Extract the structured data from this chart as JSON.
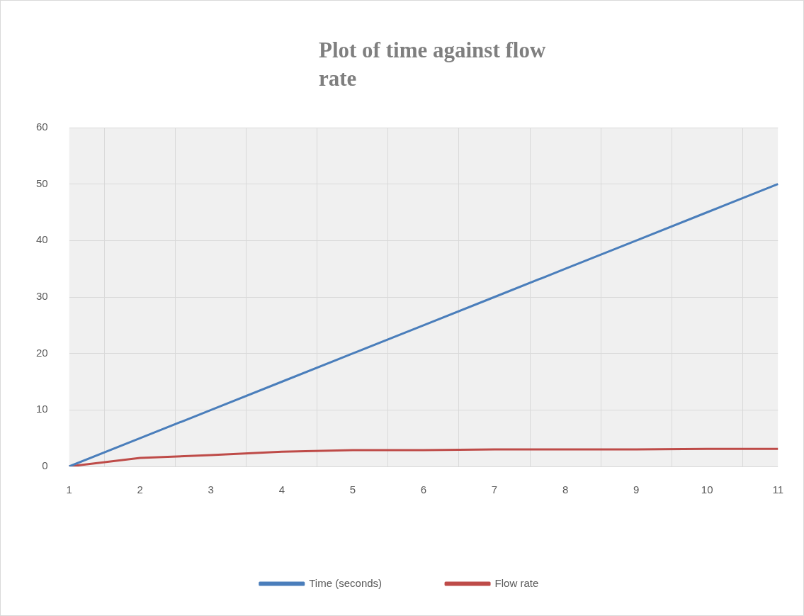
{
  "chart_data": {
    "type": "line",
    "title": "Plot of time against flow rate",
    "categories": [
      "1",
      "2",
      "3",
      "4",
      "5",
      "6",
      "7",
      "8",
      "9",
      "10",
      "11"
    ],
    "series": [
      {
        "name": "Time (seconds)",
        "color": "#4a7ebb",
        "values": [
          0,
          5,
          10,
          15,
          20,
          25,
          30,
          35,
          40,
          45,
          50
        ]
      },
      {
        "name": "Flow rate",
        "color": "#be4b48",
        "values": [
          0,
          1.5,
          2,
          2.6,
          2.9,
          2.9,
          3,
          3,
          3,
          3.1,
          3.1
        ]
      }
    ],
    "ylim": [
      0,
      60
    ],
    "yticks": [
      0,
      10,
      20,
      30,
      40,
      50,
      60
    ],
    "grid": true,
    "legend": "bottom",
    "marker": "none",
    "line_style": "solid"
  }
}
